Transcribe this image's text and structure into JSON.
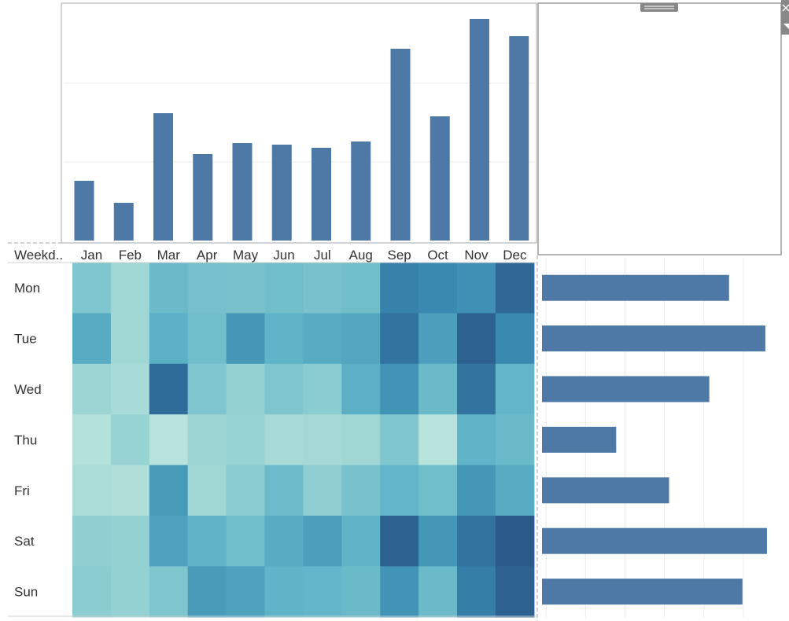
{
  "months": [
    "Jan",
    "Feb",
    "Mar",
    "Apr",
    "May",
    "Jun",
    "Jul",
    "Aug",
    "Sep",
    "Oct",
    "Nov",
    "Dec"
  ],
  "weekdays": [
    "Mon",
    "Tue",
    "Wed",
    "Thu",
    "Fri",
    "Sat",
    "Sun"
  ],
  "corner_header": "Weekd..",
  "chart_data": [
    {
      "type": "bar",
      "orientation": "vertical",
      "categories": [
        "Jan",
        "Feb",
        "Mar",
        "Apr",
        "May",
        "Jun",
        "Jul",
        "Aug",
        "Sep",
        "Oct",
        "Nov",
        "Dec"
      ],
      "values": [
        38,
        24,
        81,
        55,
        62,
        61,
        59,
        63,
        122,
        79,
        141,
        130
      ],
      "ylim": [
        0,
        150
      ],
      "grid": true,
      "color": "#4e79a7"
    },
    {
      "type": "heatmap",
      "rows": [
        "Mon",
        "Tue",
        "Wed",
        "Thu",
        "Fri",
        "Sat",
        "Sun"
      ],
      "columns": [
        "Jan",
        "Feb",
        "Mar",
        "Apr",
        "May",
        "Jun",
        "Jul",
        "Aug",
        "Sep",
        "Oct",
        "Nov",
        "Dec"
      ],
      "values": [
        [
          0.35,
          0.2,
          0.45,
          0.4,
          0.38,
          0.42,
          0.38,
          0.42,
          0.78,
          0.74,
          0.7,
          0.92
        ],
        [
          0.55,
          0.2,
          0.52,
          0.42,
          0.66,
          0.5,
          0.55,
          0.58,
          0.86,
          0.62,
          0.96,
          0.74
        ],
        [
          0.22,
          0.16,
          0.9,
          0.35,
          0.26,
          0.36,
          0.3,
          0.52,
          0.68,
          0.45,
          0.86,
          0.48
        ],
        [
          0.1,
          0.24,
          0.08,
          0.22,
          0.24,
          0.16,
          0.18,
          0.2,
          0.35,
          0.08,
          0.5,
          0.45
        ],
        [
          0.14,
          0.12,
          0.64,
          0.2,
          0.3,
          0.44,
          0.28,
          0.38,
          0.48,
          0.42,
          0.66,
          0.55
        ],
        [
          0.28,
          0.26,
          0.6,
          0.5,
          0.42,
          0.55,
          0.62,
          0.5,
          0.96,
          0.66,
          0.86,
          1.0
        ],
        [
          0.3,
          0.26,
          0.36,
          0.64,
          0.6,
          0.5,
          0.48,
          0.45,
          0.68,
          0.45,
          0.8,
          0.96
        ]
      ],
      "color_range": [
        "#c8ebe0",
        "#2b5a8a"
      ]
    },
    {
      "type": "bar",
      "orientation": "horizontal",
      "categories": [
        "Mon",
        "Tue",
        "Wed",
        "Thu",
        "Fri",
        "Sat",
        "Sun"
      ],
      "values": [
        237,
        283,
        212,
        94,
        161,
        285,
        254
      ],
      "xlim": [
        0,
        300
      ],
      "grid": true,
      "color": "#4e79a7"
    }
  ],
  "toolbar": {
    "drag_handle_icon": "drag-grip-icon",
    "close_icon": "close-icon",
    "menu_icon": "dropdown-arrow-icon"
  },
  "colors": {
    "bar": "#4e79a7",
    "grid": "#ececec",
    "pane_border": "#aaaaaa",
    "dashed_border": "#c0c4cc"
  }
}
